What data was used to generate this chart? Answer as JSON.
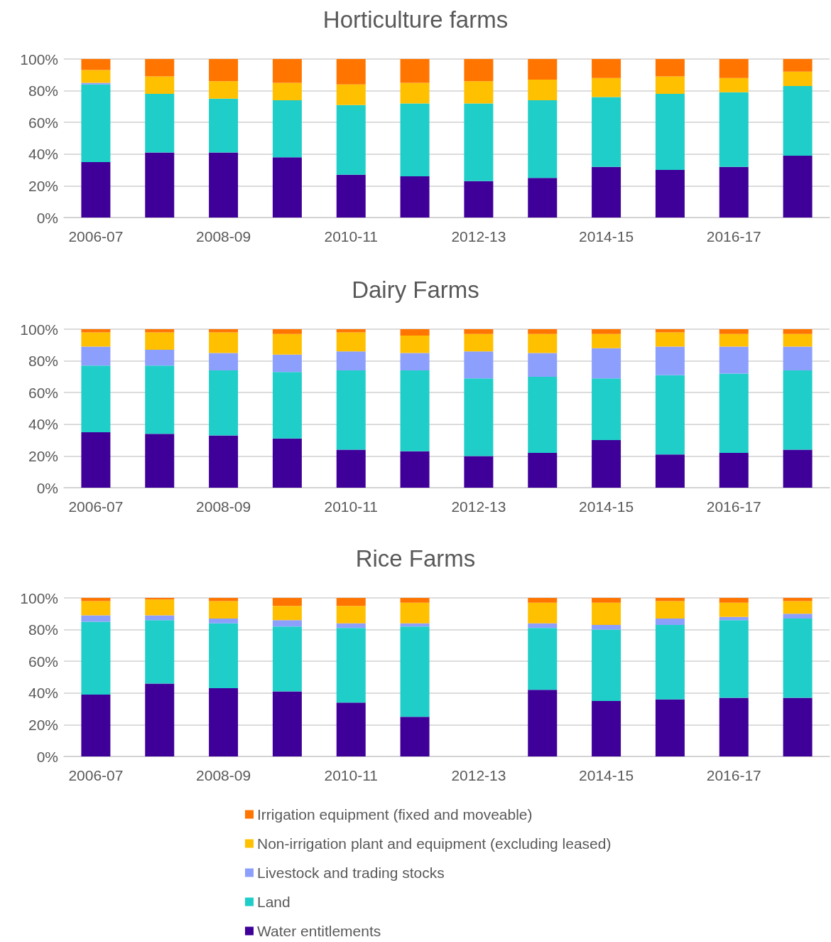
{
  "chart_data": [
    {
      "type": "bar",
      "title": "Horticulture farms",
      "stacked": true,
      "categories": [
        "2006-07",
        null,
        "2008-09",
        null,
        "2010-11",
        null,
        "2012-13",
        null,
        "2014-15",
        null,
        "2016-17",
        null
      ],
      "ylim": [
        0,
        100
      ],
      "yticks": [
        {
          "value": 0,
          "label": "0%"
        },
        {
          "value": 20,
          "label": "20%"
        },
        {
          "value": 40,
          "label": "40%"
        },
        {
          "value": 60,
          "label": "60%"
        },
        {
          "value": 80,
          "label": "80%"
        },
        {
          "value": 100,
          "label": "100%"
        }
      ],
      "grid": "y",
      "legend": false,
      "series": [
        {
          "color": "#3f0099",
          "values": [
            35,
            41,
            41,
            38,
            27,
            26,
            23,
            25,
            32,
            30,
            32,
            39
          ]
        },
        {
          "color": "#1fcec9",
          "values": [
            49,
            37,
            34,
            36,
            44,
            46,
            49,
            49,
            44,
            48,
            47,
            44
          ]
        },
        {
          "color": "#8d9ffd",
          "values": [
            1,
            0,
            0,
            0,
            0,
            0,
            0,
            0,
            0,
            0,
            0,
            0
          ]
        },
        {
          "color": "#ffc000",
          "values": [
            8,
            11,
            11,
            11,
            13,
            13,
            14,
            13,
            12,
            11,
            9,
            9
          ]
        },
        {
          "color": "#ff7500",
          "values": [
            7,
            11,
            14,
            15,
            16,
            15,
            14,
            13,
            12,
            11,
            12,
            8
          ]
        }
      ]
    },
    {
      "type": "bar",
      "title": "Dairy Farms",
      "stacked": true,
      "categories": [
        "2006-07",
        null,
        "2008-09",
        null,
        "2010-11",
        null,
        "2012-13",
        null,
        "2014-15",
        null,
        "2016-17",
        null
      ],
      "ylim": [
        0,
        100
      ],
      "yticks": [
        {
          "value": 0,
          "label": "0%"
        },
        {
          "value": 20,
          "label": "20%"
        },
        {
          "value": 40,
          "label": "40%"
        },
        {
          "value": 60,
          "label": "60%"
        },
        {
          "value": 80,
          "label": "80%"
        },
        {
          "value": 100,
          "label": "100%"
        }
      ],
      "grid": "y",
      "legend": false,
      "series": [
        {
          "color": "#3f0099",
          "values": [
            35,
            34,
            33,
            31,
            24,
            23,
            20,
            22,
            30,
            21,
            22,
            24
          ]
        },
        {
          "color": "#1fcec9",
          "values": [
            42,
            43,
            41,
            42,
            50,
            51,
            49,
            48,
            39,
            50,
            50,
            50
          ]
        },
        {
          "color": "#8d9ffd",
          "values": [
            12,
            10,
            11,
            11,
            12,
            11,
            17,
            15,
            19,
            18,
            17,
            15
          ]
        },
        {
          "color": "#ffc000",
          "values": [
            9,
            11,
            13,
            13,
            12,
            11,
            11,
            12,
            9,
            9,
            8,
            8
          ]
        },
        {
          "color": "#ff7500",
          "values": [
            2,
            2,
            2,
            3,
            2,
            4,
            3,
            3,
            3,
            2,
            3,
            3
          ]
        }
      ]
    },
    {
      "type": "bar",
      "title": "Rice Farms",
      "stacked": true,
      "categories": [
        "2006-07",
        null,
        "2008-09",
        null,
        "2010-11",
        null,
        "2012-13",
        null,
        "2014-15",
        null,
        "2016-17",
        null
      ],
      "ylim": [
        0,
        100
      ],
      "yticks": [
        {
          "value": 0,
          "label": "0%"
        },
        {
          "value": 20,
          "label": "20%"
        },
        {
          "value": 40,
          "label": "40%"
        },
        {
          "value": 60,
          "label": "60%"
        },
        {
          "value": 80,
          "label": "80%"
        },
        {
          "value": 100,
          "label": "100%"
        }
      ],
      "grid": "y",
      "legend": "bottom",
      "series": [
        {
          "name": "Water entitlements",
          "color": "#3f0099",
          "values": [
            39,
            46,
            43,
            41,
            34,
            25,
            null,
            42,
            35,
            36,
            37,
            37
          ]
        },
        {
          "name": "Land",
          "color": "#1fcec9",
          "values": [
            46,
            40,
            41,
            41,
            47,
            57,
            null,
            39,
            45,
            47,
            49,
            50
          ]
        },
        {
          "name": "Livestock and trading stocks",
          "color": "#8d9ffd",
          "values": [
            4,
            3,
            3,
            4,
            3,
            2,
            null,
            3,
            3,
            4,
            2,
            3
          ]
        },
        {
          "name": "Non-irrigation plant and equipment (excluding leased)",
          "color": "#ffc000",
          "values": [
            9,
            10,
            11,
            9,
            11,
            13,
            null,
            13,
            14,
            11,
            9,
            8
          ]
        },
        {
          "name": "Irrigation equipment (fixed and moveable)",
          "color": "#ff7500",
          "values": [
            2,
            1,
            2,
            5,
            5,
            3,
            null,
            3,
            3,
            2,
            3,
            2
          ]
        }
      ]
    }
  ]
}
